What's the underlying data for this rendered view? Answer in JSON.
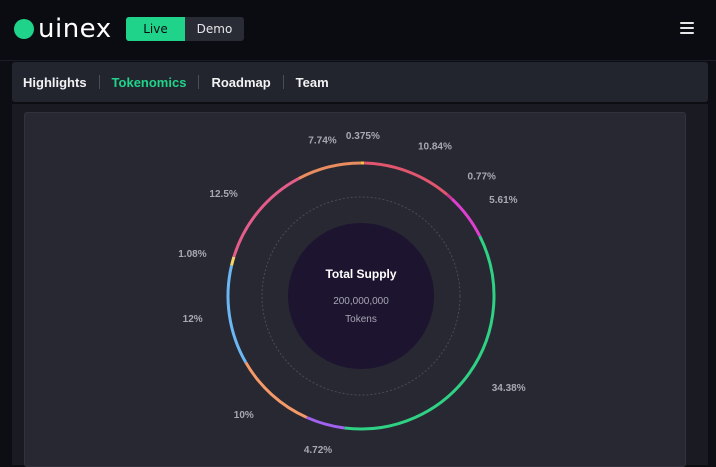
{
  "brand": {
    "logo_text": "uinex"
  },
  "mode": {
    "live_label": "Live",
    "demo_label": "Demo"
  },
  "tabs": [
    {
      "label": "Highlights"
    },
    {
      "label": "Tokenomics"
    },
    {
      "label": "Roadmap"
    },
    {
      "label": "Team"
    }
  ],
  "icons": {
    "menu": "hamburger-menu-icon",
    "logo": "brand-dot-icon"
  },
  "colors": {
    "accent": "#1fd38a",
    "panel": "#272831",
    "center": "#1d1430"
  },
  "supply": {
    "title": "Total Supply",
    "amount": "200,000,000",
    "unit": "Tokens"
  },
  "chart_data": {
    "type": "pie",
    "labels": [
      "0.375%",
      "10.84%",
      "0.77%",
      "5.61%",
      "34.38%",
      "4.72%",
      "10%",
      "12%",
      "1.08%",
      "12.5%",
      "7.74%"
    ],
    "values": [
      0.375,
      10.84,
      0.77,
      5.61,
      34.38,
      4.72,
      10,
      12,
      1.08,
      12.5,
      7.74
    ],
    "colors": [
      "#f5c542",
      "#e2556f",
      "#c8398f",
      "#de3fd0",
      "#2fd184",
      "#a062ef",
      "#f59968",
      "#6bb7f5",
      "#f3d56b",
      "#e45c8a",
      "#e98c5f"
    ]
  }
}
